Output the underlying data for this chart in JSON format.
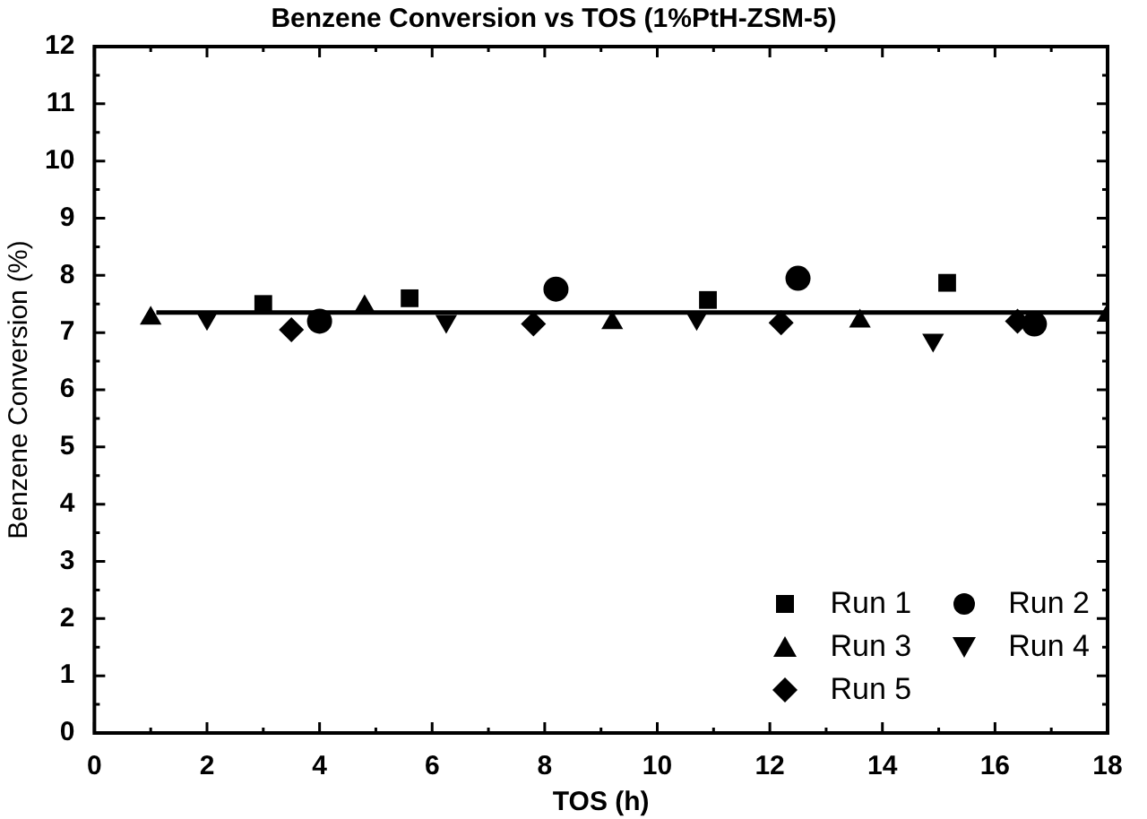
{
  "chart_data": {
    "type": "scatter",
    "title": "Benzene Conversion vs TOS (1%PtH-ZSM-5)",
    "xlabel": "TOS (h)",
    "ylabel": "Benzene Conversion (%)",
    "xlim": [
      0,
      18
    ],
    "xticks": [
      0,
      2,
      4,
      6,
      8,
      10,
      12,
      14,
      16,
      18
    ],
    "ylim": [
      0,
      12
    ],
    "yticks": [
      0,
      1,
      2,
      3,
      4,
      5,
      6,
      7,
      8,
      9,
      10,
      11,
      12
    ],
    "grid": false,
    "legend": "bottom right",
    "series": [
      {
        "name": "Run 1",
        "color": "#000000",
        "marker": "square",
        "x": [
          3,
          5.6,
          10.9,
          15.15
        ],
        "values": [
          7.5,
          7.6,
          7.57,
          7.87
        ]
      },
      {
        "name": "Run 2",
        "color": "#000000",
        "marker": "circle",
        "x": [
          4,
          8.2,
          12.5,
          16.7
        ],
        "values": [
          7.2,
          7.76,
          7.95,
          7.15
        ]
      },
      {
        "name": "Run 3",
        "color": "#000000",
        "marker": "triangle",
        "x": [
          1,
          4.8,
          9.2,
          13.6,
          18
        ],
        "values": [
          7.25,
          7.45,
          7.17,
          7.2,
          7.3
        ]
      },
      {
        "name": "Run 4",
        "color": "#000000",
        "marker": "triangle-down",
        "x": [
          2,
          6.25,
          10.7,
          14.9
        ],
        "values": [
          7.25,
          7.2,
          7.25,
          6.87
        ]
      },
      {
        "name": "Run 5",
        "color": "#000000",
        "marker": "diamond",
        "x": [
          3.5,
          7.8,
          12.2,
          16.4
        ],
        "values": [
          7.05,
          7.15,
          7.17,
          7.2
        ]
      },
      {
        "type": "line",
        "color": "#000000",
        "marker": "none",
        "line_style": "solid",
        "x": [
          1.1,
          18
        ],
        "values": [
          7.35,
          7.35
        ]
      }
    ]
  }
}
